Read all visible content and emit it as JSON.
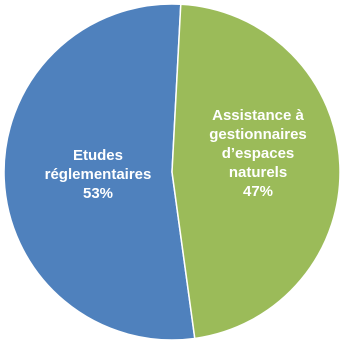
{
  "chart_data": {
    "type": "pie",
    "title": "",
    "legend": "none",
    "slices": [
      {
        "name": "Etudes réglementaires",
        "label_lines": [
          "Etudes",
          "réglementaires"
        ],
        "value": 53,
        "value_label": "53%",
        "color": "#4f81bd"
      },
      {
        "name": "Assistance à gestionnaires d’espaces naturels",
        "label_lines": [
          "Assistance  à",
          "gestionnaires",
          "d’espaces",
          "naturels"
        ],
        "value": 47,
        "value_label": "47%",
        "color": "#9bbb59"
      }
    ],
    "start_angle_deg": 0,
    "direction": "clockwise"
  }
}
